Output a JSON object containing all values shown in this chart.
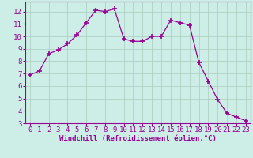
{
  "x": [
    0,
    1,
    2,
    3,
    4,
    5,
    6,
    7,
    8,
    9,
    10,
    11,
    12,
    13,
    14,
    15,
    16,
    17,
    18,
    19,
    20,
    21,
    22,
    23
  ],
  "y": [
    6.9,
    7.2,
    8.6,
    8.9,
    9.4,
    10.1,
    11.1,
    12.1,
    12.0,
    12.2,
    9.8,
    9.6,
    9.6,
    10.0,
    10.0,
    11.3,
    11.1,
    10.9,
    7.9,
    6.4,
    4.9,
    3.8,
    3.5,
    3.2
  ],
  "line_color": "#990099",
  "marker": "+",
  "marker_size": 4,
  "bg_color": "#cceee6",
  "grid_color": "#aaccbb",
  "xlabel": "Windchill (Refroidissement éolien,°C)",
  "xlabel_color": "#990099",
  "tick_color": "#990099",
  "spine_color": "#990099",
  "xlim": [
    -0.5,
    23.5
  ],
  "ylim": [
    3,
    12.8
  ],
  "yticks": [
    3,
    4,
    5,
    6,
    7,
    8,
    9,
    10,
    11,
    12
  ],
  "xticks": [
    0,
    1,
    2,
    3,
    4,
    5,
    6,
    7,
    8,
    9,
    10,
    11,
    12,
    13,
    14,
    15,
    16,
    17,
    18,
    19,
    20,
    21,
    22,
    23
  ],
  "font_size": 6.5,
  "label_font_size": 6.5
}
